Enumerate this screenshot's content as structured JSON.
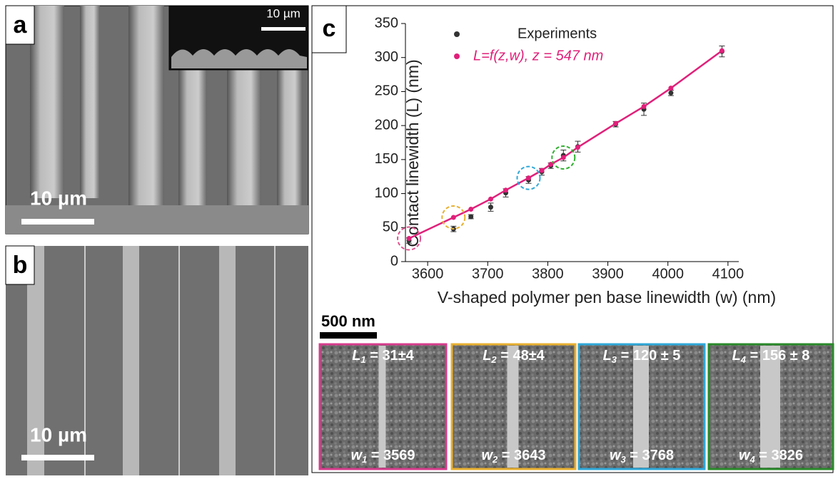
{
  "panels": {
    "a": {
      "label": "a",
      "scale": "10 µm",
      "inset_scale": "10 µm"
    },
    "b": {
      "label": "b",
      "scale": "10 µm"
    },
    "c": {
      "label": "c",
      "scale": "500 nm"
    }
  },
  "chart_data": {
    "type": "scatter",
    "x_label": "V-shaped polymer pen base linewidth (w) (nm)",
    "y_label": "Contact linewidth (L) (nm)",
    "xlim": [
      3563,
      4118
    ],
    "xticks": [
      3600,
      3700,
      3800,
      3900,
      4000,
      4100
    ],
    "ylim": [
      0,
      350
    ],
    "yticks": [
      0,
      50,
      100,
      150,
      200,
      250,
      300,
      350
    ],
    "series": [
      {
        "name": "Experiments",
        "color": "#333333",
        "x": [
          3569,
          3643,
          3672,
          3705,
          3730,
          3768,
          3790,
          3805,
          3826,
          3850,
          3913,
          3960,
          4005,
          4090
        ],
        "values": [
          31,
          48,
          66,
          80,
          101,
          120,
          132,
          141,
          156,
          169,
          202,
          224,
          248,
          309
        ],
        "errors": [
          4,
          4,
          3,
          6,
          6,
          5,
          5,
          4,
          8,
          8,
          4,
          9,
          4,
          8
        ]
      },
      {
        "name": "L=f(z,w),  z = 547 nm",
        "color": "#e0207a",
        "line": true,
        "x": [
          3569,
          3643,
          3672,
          3705,
          3730,
          3768,
          3790,
          3805,
          3826,
          3850,
          3913,
          3960,
          4005,
          4090
        ],
        "values": [
          34,
          65,
          77,
          92,
          105,
          123,
          134,
          143,
          153,
          168,
          203,
          228,
          255,
          310
        ]
      }
    ]
  },
  "images": [
    {
      "color": "#d63c8c",
      "L": "L",
      "L_sub": "1",
      "L_text": " = 31±4",
      "w": "w",
      "w_sub": "1",
      "w_text": " = 3569"
    },
    {
      "color": "#e8b030",
      "L": "L",
      "L_sub": "2",
      "L_text": " = 48±4",
      "w": "w",
      "w_sub": "2",
      "w_text": " = 3643"
    },
    {
      "color": "#2fa8d8",
      "L": "L",
      "L_sub": "3",
      "L_text": " = 120 ± 5",
      "w": "w",
      "w_sub": "3",
      "w_text": " = 3768"
    },
    {
      "color": "#2a8a2a",
      "L": "L",
      "L_sub": "4",
      "L_text": " = 156 ± 8",
      "w": "w",
      "w_sub": "4",
      "w_text": " = 3826"
    }
  ]
}
